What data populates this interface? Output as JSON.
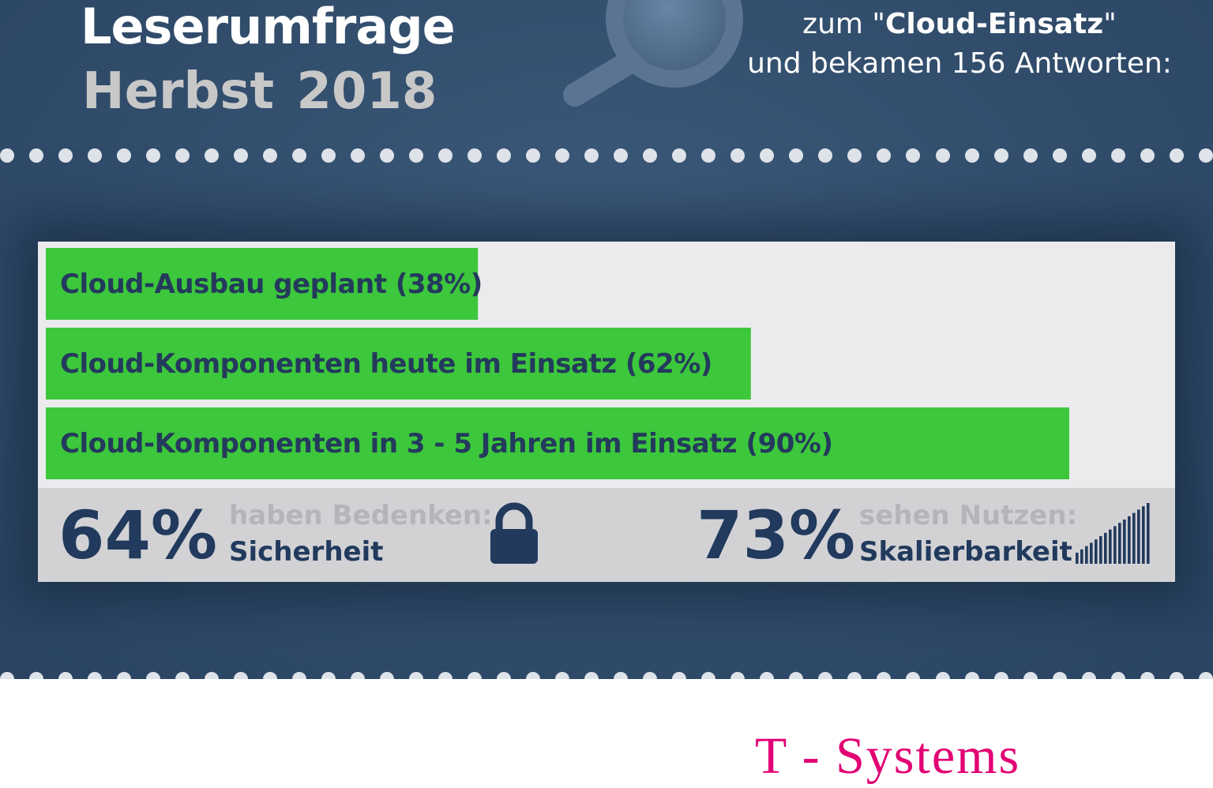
{
  "header": {
    "title_line1": "Leserumfrage",
    "title_line2": "Herbst 2018",
    "intro_line1_prefix": "zum \"",
    "intro_line1_bold": "Cloud-Einsatz",
    "intro_line1_suffix": "\"",
    "intro_line2": "und bekamen 156 Antworten:"
  },
  "chart_data": {
    "type": "bar",
    "orientation": "horizontal",
    "categories": [
      "Cloud-Ausbau geplant",
      "Cloud-Komponenten heute im Einsatz",
      "Cloud-Komponenten in 3 - 5 Jahren im Einsatz"
    ],
    "values": [
      38,
      62,
      90
    ],
    "labels": [
      "Cloud-Ausbau geplant (38%)",
      "Cloud-Komponenten heute im Einsatz (62%)",
      "Cloud-Komponenten in 3 - 5 Jahren im Einsatz (90%)"
    ],
    "xlim": [
      0,
      100
    ],
    "bar_color": "#3cc73c",
    "background_color": "#ebebee",
    "grid": false,
    "legend": "none"
  },
  "stats": [
    {
      "percent": "64%",
      "muted_text": "haben Bedenken:",
      "strong_text": "Sicherheit",
      "icon": "padlock-icon"
    },
    {
      "percent": "73%",
      "muted_text": "sehen Nutzen:",
      "strong_text": "Skalierbarkeit",
      "icon": "scaling-bars-icon"
    }
  ],
  "sponsor": {
    "text": "T - Systems",
    "color": "#e20074"
  },
  "colors": {
    "hero_background": "#34506f",
    "accent_green": "#3cc73c",
    "text_dark": "#213a5d",
    "text_muted": "#b3b5bb",
    "dot_color": "#dfe4ea"
  }
}
